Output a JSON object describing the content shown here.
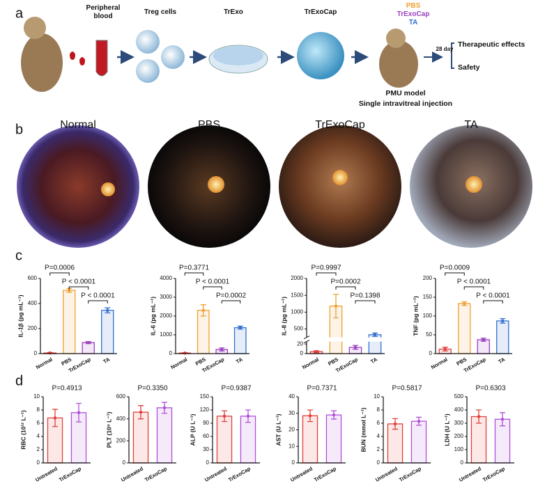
{
  "panels": {
    "a": "a",
    "b": "b",
    "c": "c",
    "d": "d"
  },
  "panel_a": {
    "steps": [
      "Peripheral blood",
      "Treg cells",
      "TrExo",
      "TrExoCap"
    ],
    "treatments": [
      {
        "name": "PBS",
        "color": "#f0a030"
      },
      {
        "name": "TrExoCap",
        "color": "#9b3fc0"
      },
      {
        "name": "TA",
        "color": "#2f6fd0"
      }
    ],
    "duration": "28 day",
    "outcomes": [
      "Therapeutic effects",
      "Safety"
    ],
    "model": "PMU model",
    "injection": "Single intravitreal injection"
  },
  "panel_b": {
    "images": [
      "Normal",
      "PBS",
      "TrExoCap",
      "TA"
    ]
  },
  "chart_data": [
    {
      "type": "bar",
      "ylabel": "IL-1β (pg mL⁻¹)",
      "categories": [
        "Normal",
        "PBS",
        "TrExoCap",
        "TA"
      ],
      "values": [
        5,
        505,
        88,
        345
      ],
      "errors": [
        4,
        15,
        8,
        20
      ],
      "colors": [
        "#e0403a",
        "#f0a030",
        "#9b3fc0",
        "#2f6fd0"
      ],
      "ylim": [
        0,
        600
      ],
      "yticks": [
        0,
        200,
        400,
        600
      ],
      "comparisons": [
        {
          "label": "P=0.0006",
          "groups": [
            "Normal",
            "PBS"
          ]
        },
        {
          "label": "P < 0.0001",
          "groups": [
            "PBS",
            "TrExoCap"
          ]
        },
        {
          "label": "P < 0.0001",
          "groups": [
            "TrExoCap",
            "TA"
          ]
        }
      ]
    },
    {
      "type": "bar",
      "ylabel": "IL-6 (pg mL⁻¹)",
      "categories": [
        "Normal",
        "PBS",
        "TrExoCap",
        "TA"
      ],
      "values": [
        30,
        2300,
        220,
        1380
      ],
      "errors": [
        20,
        300,
        80,
        80
      ],
      "colors": [
        "#e0403a",
        "#f0a030",
        "#9b3fc0",
        "#2f6fd0"
      ],
      "ylim": [
        0,
        4000
      ],
      "yticks": [
        0,
        1000,
        2000,
        3000,
        4000
      ],
      "comparisons": [
        {
          "label": "P=0.3771",
          "groups": [
            "Normal",
            "PBS"
          ]
        },
        {
          "label": "P < 0.0001",
          "groups": [
            "PBS",
            "TrExoCap"
          ]
        },
        {
          "label": "P=0.0002",
          "groups": [
            "TrExoCap",
            "TA"
          ]
        }
      ]
    },
    {
      "type": "bar",
      "ylabel": "IL-8 (pg mL⁻¹)",
      "categories": [
        "Normal",
        "PBS",
        "TrExoCap",
        "TA"
      ],
      "values": [
        4,
        1180,
        13,
        330
      ],
      "errors": [
        2,
        350,
        4,
        50
      ],
      "colors": [
        "#e0403a",
        "#f0a030",
        "#9b3fc0",
        "#2f6fd0"
      ],
      "ylim": [
        [
          0,
          25
        ],
        [
          250,
          2000
        ]
      ],
      "yticks": [
        0,
        20,
        500,
        1000,
        1500,
        2000
      ],
      "comparisons": [
        {
          "label": "P=0.9997",
          "groups": [
            "Normal",
            "PBS"
          ]
        },
        {
          "label": "P=0.0002",
          "groups": [
            "PBS",
            "TrExoCap"
          ]
        },
        {
          "label": "P=0.1398",
          "groups": [
            "TrExoCap",
            "TA"
          ]
        }
      ]
    },
    {
      "type": "bar",
      "ylabel": "TNF (pg mL⁻¹)",
      "categories": [
        "Normal",
        "PBS",
        "TrExoCap",
        "TA"
      ],
      "values": [
        12,
        133,
        37,
        87
      ],
      "errors": [
        5,
        5,
        4,
        6
      ],
      "colors": [
        "#e0403a",
        "#f0a030",
        "#9b3fc0",
        "#2f6fd0"
      ],
      "ylim": [
        0,
        200
      ],
      "yticks": [
        0,
        50,
        100,
        150,
        200
      ],
      "comparisons": [
        {
          "label": "P=0.0009",
          "groups": [
            "Normal",
            "PBS"
          ]
        },
        {
          "label": "P < 0.0001",
          "groups": [
            "PBS",
            "TrExoCap"
          ]
        },
        {
          "label": "P < 0.0001",
          "groups": [
            "TrExoCap",
            "TA"
          ]
        }
      ]
    },
    {
      "type": "bar",
      "title": "P=0.4913",
      "ylabel": "RBC (10¹² L⁻¹)",
      "categories": [
        "Untreated",
        "TrExoCap"
      ],
      "values": [
        6.8,
        7.6
      ],
      "errors": [
        1.3,
        1.4
      ],
      "colors": [
        "#e0403a",
        "#b050d8"
      ],
      "ylim": [
        0,
        10
      ],
      "yticks": [
        0,
        2,
        4,
        6,
        8,
        10
      ]
    },
    {
      "type": "bar",
      "title": "P=0.3350",
      "ylabel": "PLT (10⁹ L⁻¹)",
      "categories": [
        "Untreated",
        "TrExoCap"
      ],
      "values": [
        460,
        500
      ],
      "errors": [
        60,
        50
      ],
      "colors": [
        "#e0403a",
        "#b050d8"
      ],
      "ylim": [
        0,
        600
      ],
      "yticks": [
        0,
        200,
        400,
        600
      ]
    },
    {
      "type": "bar",
      "title": "P=0.9387",
      "ylabel": "ALP (U L⁻¹)",
      "categories": [
        "Untreated",
        "TrExoCap"
      ],
      "values": [
        106,
        106
      ],
      "errors": [
        12,
        14
      ],
      "colors": [
        "#e0403a",
        "#b050d8"
      ],
      "ylim": [
        0,
        150
      ],
      "yticks": [
        0,
        30,
        60,
        90,
        120,
        150
      ]
    },
    {
      "type": "bar",
      "title": "P=0.7371",
      "ylabel": "AST (U L⁻¹)",
      "categories": [
        "Untreated",
        "TrExoCap"
      ],
      "values": [
        28.5,
        29
      ],
      "errors": [
        3.5,
        2.5
      ],
      "colors": [
        "#e0403a",
        "#b050d8"
      ],
      "ylim": [
        0,
        40
      ],
      "yticks": [
        0,
        10,
        20,
        30,
        40
      ]
    },
    {
      "type": "bar",
      "title": "P=0.5817",
      "ylabel": "BUN (mmol L⁻¹)",
      "categories": [
        "Untreated",
        "TrExoCap"
      ],
      "values": [
        5.9,
        6.3
      ],
      "errors": [
        0.8,
        0.6
      ],
      "colors": [
        "#e0403a",
        "#b050d8"
      ],
      "ylim": [
        0,
        10
      ],
      "yticks": [
        0,
        2,
        4,
        6,
        8,
        10
      ]
    },
    {
      "type": "bar",
      "title": "P=0.6303",
      "ylabel": "LDH (U L⁻¹)",
      "categories": [
        "Untreated",
        "TrExoCap"
      ],
      "values": [
        350,
        330
      ],
      "errors": [
        50,
        50
      ],
      "colors": [
        "#e0403a",
        "#b050d8"
      ],
      "ylim": [
        0,
        500
      ],
      "yticks": [
        0,
        100,
        200,
        300,
        400,
        500
      ]
    }
  ]
}
